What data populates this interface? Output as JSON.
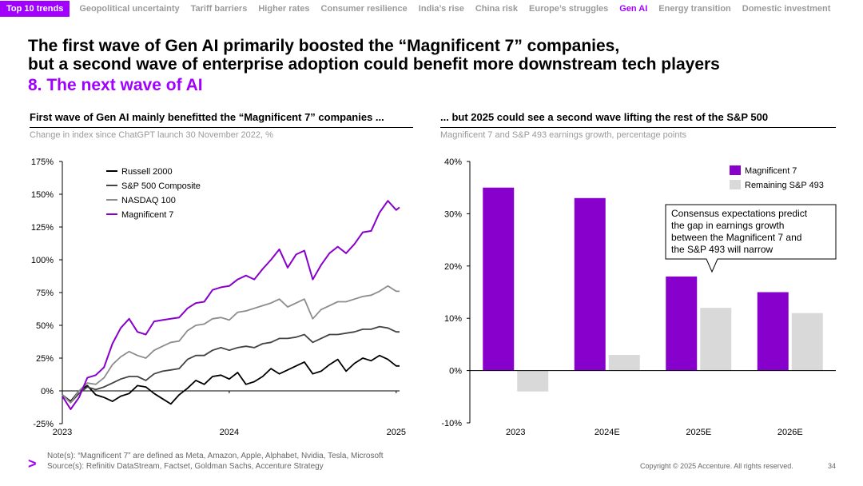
{
  "nav": {
    "items": [
      "Top 10 trends",
      "Geopolitical uncertainty",
      "Tariff barriers",
      "Higher rates",
      "Consumer resilience",
      "India’s rise",
      "China risk",
      "Europe’s struggles",
      "Gen AI",
      "Energy transition",
      "Domestic investment"
    ],
    "active": "Gen AI"
  },
  "headline": {
    "line1": "The first wave of Gen AI primarily boosted the “Magnificent 7” companies,",
    "line2": "but a second wave of enterprise adoption could benefit more downstream tech players",
    "section": "8. The next wave of AI"
  },
  "left_panel": {
    "title": "First wave of Gen AI mainly benefitted the “Magnificent 7” companies ...",
    "subtitle": "Change in index since ChatGPT launch 30 November 2022, %"
  },
  "right_panel": {
    "title": "... but 2025 could see a second wave lifting the rest of the S&P 500",
    "subtitle": "Magnificent 7 and S&P 493 earnings growth, percentage points"
  },
  "colors": {
    "accent": "#a100ff",
    "russell": "#000000",
    "sp500": "#444444",
    "nasdaq": "#8c8c8c",
    "mag7": "#8800cc",
    "rest": "#d9d9d9"
  },
  "chart_data": [
    {
      "type": "line",
      "title": "First wave of Gen AI mainly benefitted the “Magnificent 7” companies ...",
      "ylabel": "Change in index since ChatGPT launch 30 November 2022, %",
      "x_ticks": [
        "2023",
        "2024",
        "2025"
      ],
      "y_ticks": [
        "175%",
        "150%",
        "125%",
        "100%",
        "75%",
        "50%",
        "25%",
        "0%",
        "-25%"
      ],
      "ylim": [
        -25,
        175
      ],
      "x": [
        0,
        0.05,
        0.1,
        0.15,
        0.2,
        0.25,
        0.3,
        0.35,
        0.4,
        0.45,
        0.5,
        0.55,
        0.6,
        0.65,
        0.7,
        0.75,
        0.8,
        0.85,
        0.9,
        0.95,
        1.0,
        1.05,
        1.1,
        1.15,
        1.2,
        1.25,
        1.3,
        1.35,
        1.4,
        1.45,
        1.5,
        1.55,
        1.6,
        1.65,
        1.7,
        1.75,
        1.8,
        1.85,
        1.9,
        1.95,
        2.0,
        2.02
      ],
      "series": [
        {
          "name": "Russell 2000",
          "color": "#000000",
          "values": [
            -3,
            -8,
            0,
            4,
            -3,
            -5,
            -8,
            -4,
            -2,
            4,
            3,
            -2,
            -6,
            -10,
            -3,
            2,
            8,
            5,
            11,
            12,
            9,
            14,
            5,
            7,
            11,
            17,
            13,
            16,
            19,
            22,
            13,
            15,
            20,
            24,
            15,
            21,
            25,
            23,
            27,
            24,
            19,
            19
          ]
        },
        {
          "name": "S&P 500 Composite",
          "color": "#444444",
          "values": [
            -3,
            -9,
            -2,
            3,
            1,
            3,
            6,
            9,
            11,
            11,
            8,
            13,
            15,
            16,
            17,
            24,
            27,
            27,
            31,
            33,
            31,
            33,
            34,
            33,
            36,
            37,
            40,
            40,
            41,
            43,
            37,
            40,
            43,
            43,
            44,
            45,
            47,
            47,
            49,
            48,
            45,
            45
          ]
        },
        {
          "name": "NASDAQ 100",
          "color": "#8c8c8c",
          "values": [
            -3,
            -9,
            0,
            6,
            5,
            10,
            20,
            26,
            30,
            27,
            25,
            31,
            34,
            37,
            38,
            46,
            50,
            51,
            55,
            56,
            54,
            60,
            61,
            63,
            65,
            67,
            70,
            64,
            67,
            70,
            55,
            62,
            65,
            68,
            68,
            70,
            72,
            73,
            76,
            80,
            76,
            76
          ]
        },
        {
          "name": "Magnificent 7",
          "color": "#8800cc",
          "values": [
            -4,
            -14,
            -5,
            10,
            12,
            18,
            36,
            48,
            55,
            45,
            43,
            53,
            54,
            55,
            56,
            63,
            67,
            68,
            77,
            79,
            80,
            85,
            88,
            85,
            93,
            100,
            108,
            94,
            104,
            107,
            85,
            96,
            105,
            110,
            105,
            112,
            121,
            122,
            136,
            145,
            138,
            140
          ]
        }
      ]
    },
    {
      "type": "bar",
      "title": "... but 2025 could see a second wave lifting the rest of the S&P 500",
      "ylabel": "Magnificent 7 and S&P 493 earnings growth, percentage points",
      "categories": [
        "2023",
        "2024E",
        "2025E",
        "2026E"
      ],
      "y_ticks": [
        "40%",
        "30%",
        "20%",
        "10%",
        "0%",
        "-10%"
      ],
      "ylim": [
        -10,
        40
      ],
      "series": [
        {
          "name": "Magnificent 7",
          "color": "#8800cc",
          "values": [
            35,
            33,
            18,
            15
          ]
        },
        {
          "name": "Remaining S&P 493",
          "color": "#d9d9d9",
          "values": [
            -4,
            3,
            12,
            11
          ]
        }
      ],
      "annotation": "Consensus expectations predict the gap in earnings growth between the Magnificent 7 and the S&P 493 will narrow"
    }
  ],
  "footer": {
    "note": "Note(s): “Magnificent 7” are defined as Meta, Amazon, Apple, Alphabet, Nvidia, Tesla, Microsoft",
    "source": "Source(s): Refinitiv DataStream, Factset, Goldman Sachs, Accenture Strategy",
    "copyright": "Copyright © 2025 Accenture. All rights reserved.",
    "page_number": "34",
    "logo": ">"
  }
}
